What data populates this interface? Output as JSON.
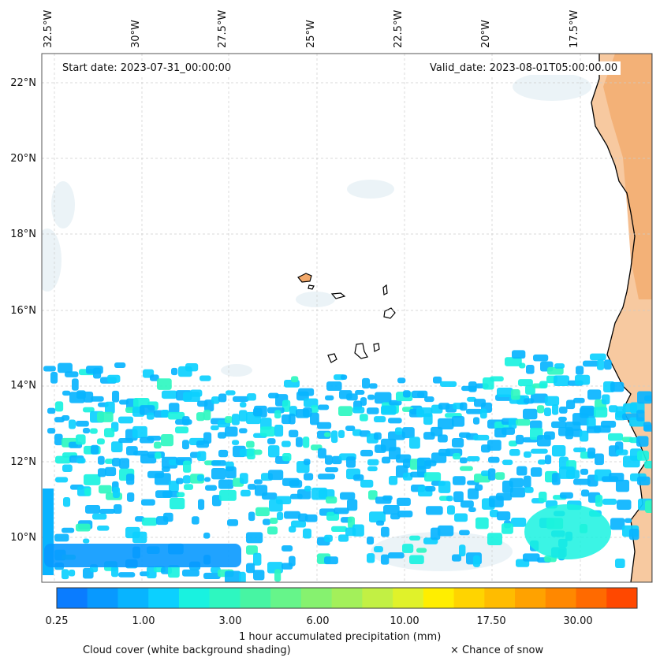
{
  "map": {
    "lon_labels": [
      "32.5°W",
      "30°W",
      "27.5°W",
      "25°W",
      "22.5°W",
      "20°W",
      "17.5°W"
    ],
    "lat_labels": [
      "22°N",
      "20°N",
      "18°N",
      "16°N",
      "14°N",
      "12°N",
      "10°N"
    ],
    "start_date_label": "Start date: 2023-07-31_00:00:00",
    "valid_date_label": "Valid_date: 2023-08-01T05:00:00.00",
    "colors": {
      "land": "#f2a86a",
      "land_light": "#f7c9a0",
      "coast": "#000000",
      "grid": "#cccccc",
      "cloud_shade": "#e6f0f5"
    }
  },
  "colorbar": {
    "colors": [
      "#0a7cff",
      "#0899ff",
      "#08b4ff",
      "#0cd0ff",
      "#19f2e0",
      "#2ef7c0",
      "#47f5a3",
      "#66f58a",
      "#86f26f",
      "#a3f05a",
      "#c2f044",
      "#e0f22a",
      "#ffee00",
      "#ffd400",
      "#ffbc00",
      "#ffa200",
      "#ff8800",
      "#ff6a00",
      "#ff4800"
    ],
    "tick_labels": [
      "0.25",
      "1.00",
      "3.00",
      "6.00",
      "10.00",
      "17.50",
      "30.00"
    ],
    "label": "1 hour accumulated precipitation (mm)"
  },
  "legend": {
    "cloud_cover": "Cloud cover (white background shading)",
    "snow": "× Chance of snow"
  }
}
